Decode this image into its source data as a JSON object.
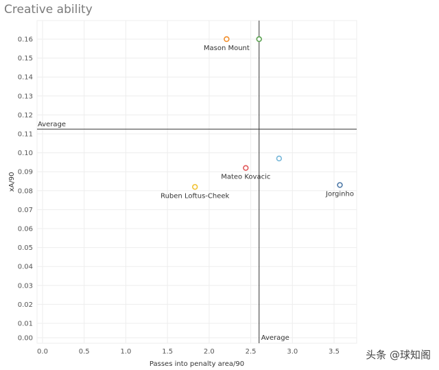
{
  "chart_data": {
    "type": "scatter",
    "title": "Creative ability",
    "xlabel": "Passes into penalty area/90",
    "ylabel": "xA/90",
    "xlim": [
      -0.05,
      3.75
    ],
    "x_ticks": [
      "0.0",
      "0.5",
      "1.0",
      "1.5",
      "2.0",
      "2.5",
      "3.0",
      "3.5"
    ],
    "y_ticks": [
      "0.00",
      "0.01",
      "0.02",
      "0.03",
      "0.04",
      "0.05",
      "0.06",
      "0.07",
      "0.08",
      "0.09",
      "0.10",
      "0.11",
      "0.12",
      "0.13",
      "0.14",
      "0.15",
      "0.16"
    ],
    "grid": true,
    "points": [
      {
        "label": "Mason Mount",
        "x": 2.21,
        "y": 0.16,
        "color": "#f28e2b",
        "label_pos": "below"
      },
      {
        "label": "",
        "x": 2.6,
        "y": 0.16,
        "color": "#59a14f",
        "label_pos": "none"
      },
      {
        "label": "Mateo Kovacic",
        "x": 2.44,
        "y": 0.092,
        "color": "#e15759",
        "label_pos": "below"
      },
      {
        "label": "",
        "x": 2.84,
        "y": 0.097,
        "color": "#76b7d9",
        "label_pos": "none"
      },
      {
        "label": "Ruben Loftus-Cheek",
        "x": 1.83,
        "y": 0.082,
        "color": "#f1c232",
        "label_pos": "below"
      },
      {
        "label": "Jorginho",
        "x": 3.57,
        "y": 0.083,
        "color": "#4e79a7",
        "label_pos": "below"
      }
    ],
    "reference_lines": [
      {
        "axis": "y",
        "value": 0.1125,
        "label": "Average"
      },
      {
        "axis": "x",
        "value": 2.6,
        "label": "Average"
      }
    ]
  },
  "watermark": "头条 @球知阁"
}
